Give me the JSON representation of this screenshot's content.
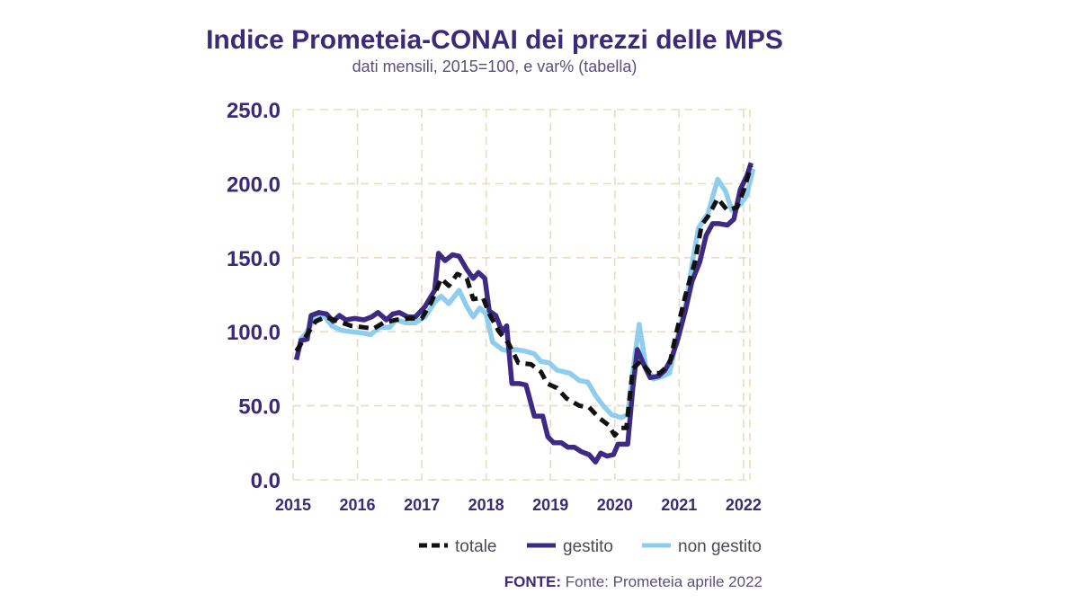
{
  "header": {
    "title": "Indice Prometeia-CONAI dei prezzi delle MPS",
    "subtitle": "dati mensili, 2015=100, e var% (tabella)"
  },
  "source": {
    "label": "FONTE:",
    "text": "Fonte: Prometeia aprile 2022"
  },
  "colors": {
    "totale": "#111111",
    "gestito": "#3d2a82",
    "non_gestito": "#8fcdee",
    "grid": "#e9dcc0",
    "axis_text": "#3b2a78"
  },
  "chart_data": {
    "type": "line",
    "title": "Indice Prometeia-CONAI dei prezzi delle MPS",
    "subtitle": "dati mensili, 2015=100, e var% (tabella)",
    "xlabel": "",
    "ylabel": "",
    "x_tick_labels": [
      "2015",
      "2016",
      "2017",
      "2018",
      "2019",
      "2020",
      "2021",
      "2022"
    ],
    "y_tick_labels": [
      "0.0",
      "50.0",
      "100.0",
      "150.0",
      "200.0",
      "250.0"
    ],
    "xlim": [
      2015.0,
      2022.1
    ],
    "ylim": [
      0,
      250
    ],
    "grid": true,
    "legend_position": "bottom",
    "series": [
      {
        "name": "totale",
        "style": "dashed",
        "points": [
          [
            2015.05,
            87
          ],
          [
            2015.2,
            97
          ],
          [
            2015.35,
            107
          ],
          [
            2015.5,
            110
          ],
          [
            2015.7,
            107
          ],
          [
            2015.9,
            104
          ],
          [
            2016.1,
            103
          ],
          [
            2016.25,
            102
          ],
          [
            2016.4,
            106
          ],
          [
            2016.6,
            108
          ],
          [
            2016.8,
            109
          ],
          [
            2017.0,
            109
          ],
          [
            2017.15,
            120
          ],
          [
            2017.3,
            136
          ],
          [
            2017.42,
            131
          ],
          [
            2017.55,
            139
          ],
          [
            2017.7,
            136
          ],
          [
            2017.8,
            122
          ],
          [
            2017.95,
            123
          ],
          [
            2018.05,
            112
          ],
          [
            2018.2,
            100
          ],
          [
            2018.35,
            92
          ],
          [
            2018.5,
            79
          ],
          [
            2018.7,
            78
          ],
          [
            2018.85,
            73
          ],
          [
            2018.95,
            65
          ],
          [
            2019.1,
            62
          ],
          [
            2019.25,
            55
          ],
          [
            2019.45,
            50
          ],
          [
            2019.6,
            49
          ],
          [
            2019.75,
            42
          ],
          [
            2019.9,
            37
          ],
          [
            2020.0,
            30
          ],
          [
            2020.1,
            35
          ],
          [
            2020.18,
            35
          ],
          [
            2020.28,
            75
          ],
          [
            2020.4,
            80
          ],
          [
            2020.55,
            72
          ],
          [
            2020.7,
            72
          ],
          [
            2020.85,
            78
          ],
          [
            2020.95,
            98
          ],
          [
            2021.1,
            125
          ],
          [
            2021.25,
            148
          ],
          [
            2021.35,
            172
          ],
          [
            2021.45,
            178
          ],
          [
            2021.6,
            190
          ],
          [
            2021.75,
            182
          ],
          [
            2021.9,
            184
          ],
          [
            2022.0,
            195
          ],
          [
            2022.12,
            212
          ]
        ]
      },
      {
        "name": "gestito",
        "style": "solid",
        "points": [
          [
            2015.05,
            81
          ],
          [
            2015.12,
            94
          ],
          [
            2015.22,
            95
          ],
          [
            2015.28,
            111
          ],
          [
            2015.4,
            113
          ],
          [
            2015.52,
            112
          ],
          [
            2015.62,
            107
          ],
          [
            2015.72,
            111
          ],
          [
            2015.82,
            108
          ],
          [
            2015.95,
            109
          ],
          [
            2016.1,
            108
          ],
          [
            2016.22,
            110
          ],
          [
            2016.32,
            113
          ],
          [
            2016.45,
            108
          ],
          [
            2016.55,
            112
          ],
          [
            2016.65,
            113
          ],
          [
            2016.78,
            110
          ],
          [
            2016.9,
            110
          ],
          [
            2017.05,
            117
          ],
          [
            2017.2,
            128
          ],
          [
            2017.26,
            153
          ],
          [
            2017.36,
            148
          ],
          [
            2017.48,
            152
          ],
          [
            2017.58,
            151
          ],
          [
            2017.7,
            142
          ],
          [
            2017.8,
            136
          ],
          [
            2017.88,
            140
          ],
          [
            2017.98,
            136
          ],
          [
            2018.05,
            114
          ],
          [
            2018.15,
            111
          ],
          [
            2018.25,
            100
          ],
          [
            2018.32,
            104
          ],
          [
            2018.4,
            65
          ],
          [
            2018.52,
            65
          ],
          [
            2018.62,
            64
          ],
          [
            2018.75,
            43
          ],
          [
            2018.88,
            43
          ],
          [
            2018.96,
            29
          ],
          [
            2019.05,
            25
          ],
          [
            2019.17,
            25
          ],
          [
            2019.27,
            22
          ],
          [
            2019.37,
            22
          ],
          [
            2019.48,
            19
          ],
          [
            2019.6,
            17
          ],
          [
            2019.7,
            12
          ],
          [
            2019.78,
            18
          ],
          [
            2019.88,
            16
          ],
          [
            2019.98,
            17
          ],
          [
            2020.05,
            24
          ],
          [
            2020.15,
            24
          ],
          [
            2020.2,
            24
          ],
          [
            2020.28,
            62
          ],
          [
            2020.35,
            88
          ],
          [
            2020.45,
            78
          ],
          [
            2020.55,
            69
          ],
          [
            2020.68,
            70
          ],
          [
            2020.78,
            74
          ],
          [
            2020.88,
            82
          ],
          [
            2020.98,
            95
          ],
          [
            2021.1,
            115
          ],
          [
            2021.2,
            134
          ],
          [
            2021.32,
            147
          ],
          [
            2021.42,
            165
          ],
          [
            2021.52,
            173
          ],
          [
            2021.62,
            173
          ],
          [
            2021.75,
            172
          ],
          [
            2021.85,
            176
          ],
          [
            2021.95,
            196
          ],
          [
            2022.05,
            205
          ],
          [
            2022.12,
            214
          ]
        ]
      },
      {
        "name": "non gestito",
        "style": "solid",
        "points": [
          [
            2015.1,
            94
          ],
          [
            2015.2,
            99
          ],
          [
            2015.35,
            110
          ],
          [
            2015.5,
            110
          ],
          [
            2015.6,
            104
          ],
          [
            2015.75,
            101
          ],
          [
            2015.9,
            100
          ],
          [
            2016.1,
            99
          ],
          [
            2016.2,
            98
          ],
          [
            2016.35,
            103
          ],
          [
            2016.5,
            103
          ],
          [
            2016.6,
            108
          ],
          [
            2016.75,
            106
          ],
          [
            2016.9,
            106
          ],
          [
            2017.05,
            110
          ],
          [
            2017.2,
            120
          ],
          [
            2017.3,
            124
          ],
          [
            2017.42,
            119
          ],
          [
            2017.58,
            128
          ],
          [
            2017.7,
            117
          ],
          [
            2017.8,
            110
          ],
          [
            2017.9,
            116
          ],
          [
            2018.0,
            112
          ],
          [
            2018.1,
            93
          ],
          [
            2018.25,
            88
          ],
          [
            2018.35,
            87
          ],
          [
            2018.45,
            88
          ],
          [
            2018.6,
            87
          ],
          [
            2018.75,
            85
          ],
          [
            2018.85,
            80
          ],
          [
            2018.98,
            79
          ],
          [
            2019.1,
            74
          ],
          [
            2019.3,
            72
          ],
          [
            2019.45,
            67
          ],
          [
            2019.58,
            66
          ],
          [
            2019.7,
            57
          ],
          [
            2019.82,
            50
          ],
          [
            2019.95,
            44
          ],
          [
            2020.1,
            42
          ],
          [
            2020.2,
            44
          ],
          [
            2020.3,
            80
          ],
          [
            2020.38,
            105
          ],
          [
            2020.48,
            77
          ],
          [
            2020.6,
            68
          ],
          [
            2020.75,
            70
          ],
          [
            2020.85,
            72
          ],
          [
            2020.95,
            92
          ],
          [
            2021.1,
            118
          ],
          [
            2021.2,
            145
          ],
          [
            2021.3,
            170
          ],
          [
            2021.45,
            180
          ],
          [
            2021.6,
            203
          ],
          [
            2021.72,
            195
          ],
          [
            2021.82,
            182
          ],
          [
            2021.95,
            186
          ],
          [
            2022.05,
            192
          ],
          [
            2022.15,
            210
          ]
        ]
      }
    ]
  }
}
